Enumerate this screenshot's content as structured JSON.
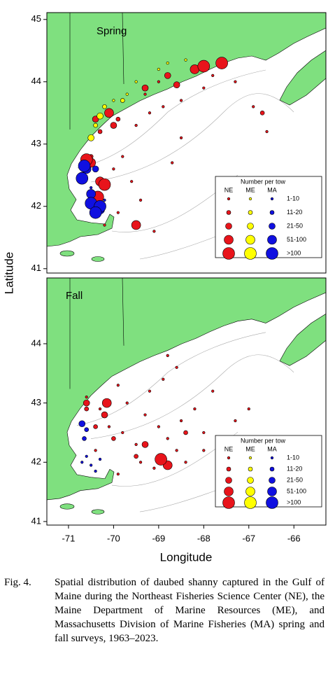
{
  "chart_data": [
    {
      "type": "scatter",
      "title": "Spring",
      "xlim": [
        -71.48,
        -65.29
      ],
      "ylim": [
        40.93,
        45.11
      ],
      "yticks": [
        41,
        42,
        43,
        44,
        45
      ],
      "legend": {
        "title": "Number per tow",
        "columns": [
          "NE",
          "ME",
          "MA"
        ],
        "colors": [
          "#e8141b",
          "#ffff00",
          "#1010e0"
        ],
        "rows": [
          "1-10",
          "11-20",
          "21-50",
          "51-100",
          ">100"
        ]
      },
      "series": [
        {
          "name": "NE",
          "class": "1-10",
          "x": [
            -69.5,
            -69.2,
            -68.9,
            -68.5,
            -68.0,
            -67.8,
            -69.8,
            -70.0,
            -69.6,
            -69.4,
            -69.9,
            -68.5,
            -67.3,
            -66.9,
            -66.6,
            -69.0,
            -69.3,
            -70.2,
            -69.1,
            -68.7
          ],
          "y": [
            43.3,
            43.5,
            43.6,
            43.7,
            43.9,
            44.1,
            42.8,
            42.6,
            42.4,
            42.1,
            41.9,
            43.1,
            44.0,
            43.6,
            43.2,
            44.0,
            43.8,
            41.7,
            41.6,
            42.7
          ]
        },
        {
          "name": "NE",
          "class": "11-20",
          "x": [
            -70.3,
            -69.9,
            -70.5,
            -70.2,
            -66.7
          ],
          "y": [
            43.2,
            43.4,
            42.8,
            42.3,
            43.5
          ]
        },
        {
          "name": "NE",
          "class": "21-50",
          "x": [
            -70.4,
            -70.0,
            -69.3,
            -68.8,
            -68.6
          ],
          "y": [
            43.4,
            43.3,
            43.9,
            44.1,
            43.95
          ]
        },
        {
          "name": "NE",
          "class": "51-100",
          "x": [
            -70.1,
            -70.3,
            -70.5,
            -69.5,
            -68.2
          ],
          "y": [
            43.5,
            42.4,
            42.7,
            41.7,
            44.2
          ]
        },
        {
          "name": "NE",
          "class": ">100",
          "x": [
            -70.6,
            -70.2,
            -70.35,
            -67.6,
            -68.0
          ],
          "y": [
            42.75,
            42.35,
            42.15,
            44.3,
            44.25
          ]
        },
        {
          "name": "ME",
          "class": "1-10",
          "x": [
            -69.5,
            -69.0,
            -68.4,
            -68.8,
            -70.0,
            -69.7
          ],
          "y": [
            44.0,
            44.2,
            44.35,
            44.3,
            43.7,
            43.8
          ]
        },
        {
          "name": "ME",
          "class": "11-20",
          "x": [
            -70.2,
            -69.8,
            -70.4
          ],
          "y": [
            43.6,
            43.7,
            43.3
          ]
        },
        {
          "name": "ME",
          "class": "21-50",
          "x": [
            -70.5,
            -70.3
          ],
          "y": [
            43.1,
            43.45
          ]
        },
        {
          "name": "MA",
          "class": "1-10",
          "x": [
            -70.4,
            -70.2,
            -70.5
          ],
          "y": [
            42.0,
            42.1,
            42.3
          ]
        },
        {
          "name": "MA",
          "class": "21-50",
          "x": [
            -70.7,
            -70.4
          ],
          "y": [
            42.5,
            42.6
          ]
        },
        {
          "name": "MA",
          "class": "51-100",
          "x": [
            -70.5,
            -70.3,
            -70.6
          ],
          "y": [
            42.2,
            41.95,
            42.6
          ]
        },
        {
          "name": "MA",
          "class": ">100",
          "x": [
            -70.7,
            -70.5,
            -70.3,
            -70.4,
            -70.65
          ],
          "y": [
            42.45,
            42.05,
            42.0,
            41.9,
            42.65
          ]
        }
      ]
    },
    {
      "type": "scatter",
      "title": "Fall",
      "xlim": [
        -71.48,
        -65.29
      ],
      "ylim": [
        40.94,
        45.11
      ],
      "xticks": [
        -71,
        -70,
        -69,
        -68,
        -67,
        -66
      ],
      "yticks": [
        41,
        42,
        43,
        44
      ],
      "legend": {
        "title": "Number per tow",
        "columns": [
          "NE",
          "ME",
          "MA"
        ],
        "colors": [
          "#e8141b",
          "#ffff00",
          "#1010e0"
        ],
        "rows": [
          "1-10",
          "11-20",
          "21-50",
          "51-100",
          ">100"
        ]
      },
      "series": [
        {
          "name": "NE",
          "class": "1-10",
          "x": [
            -70.6,
            -70.3,
            -70.1,
            -69.8,
            -69.5,
            -69.3,
            -69.0,
            -68.8,
            -68.6,
            -68.4,
            -68.5,
            -68.2,
            -68.0,
            -67.8,
            -69.7,
            -69.9,
            -69.2,
            -68.9,
            -68.6,
            -67.3,
            -67.0,
            -69.1,
            -69.9,
            -70.4,
            -69.4,
            -68.8,
            -68.0
          ],
          "y": [
            43.1,
            42.9,
            42.6,
            42.5,
            42.3,
            42.8,
            42.6,
            42.4,
            42.2,
            42.0,
            42.7,
            42.9,
            42.5,
            43.2,
            43.0,
            43.3,
            43.2,
            43.4,
            43.6,
            42.7,
            42.9,
            41.9,
            41.8,
            42.2,
            42.0,
            43.8,
            42.2
          ]
        },
        {
          "name": "NE",
          "class": "11-20",
          "x": [
            -70.4,
            -70.0,
            -69.5,
            -68.4,
            -70.6
          ],
          "y": [
            42.6,
            42.4,
            42.1,
            42.5,
            42.9
          ]
        },
        {
          "name": "NE",
          "class": "21-50",
          "x": [
            -70.6,
            -70.2,
            -69.3
          ],
          "y": [
            43.0,
            42.8,
            42.3
          ]
        },
        {
          "name": "NE",
          "class": "51-100",
          "x": [
            -70.15,
            -68.8
          ],
          "y": [
            43.0,
            41.95
          ]
        },
        {
          "name": "NE",
          "class": ">100",
          "x": [
            -68.95
          ],
          "y": [
            42.05
          ]
        },
        {
          "name": "MA",
          "class": "1-10",
          "x": [
            -70.5,
            -70.3,
            -70.6,
            -70.4,
            -70.7
          ],
          "y": [
            41.95,
            42.05,
            42.1,
            41.85,
            42.0
          ]
        },
        {
          "name": "MA",
          "class": "11-20",
          "x": [
            -70.65,
            -70.6
          ],
          "y": [
            42.4,
            42.55
          ]
        },
        {
          "name": "MA",
          "class": "21-50",
          "x": [
            -70.7
          ],
          "y": [
            42.65
          ]
        }
      ]
    }
  ],
  "axis_labels": {
    "y": "Latitude",
    "x": "Longitude"
  },
  "caption": {
    "label": "Fig. 4.",
    "text": "Spatial distribution of daubed shanny captured in the Gulf of Maine during the Northeast Fisheries Science Center (NE), the Maine Department of Marine Resources (ME), and Massachusetts Division of Marine Fisheries (MA) spring and fall surveys, 1963–2023."
  }
}
